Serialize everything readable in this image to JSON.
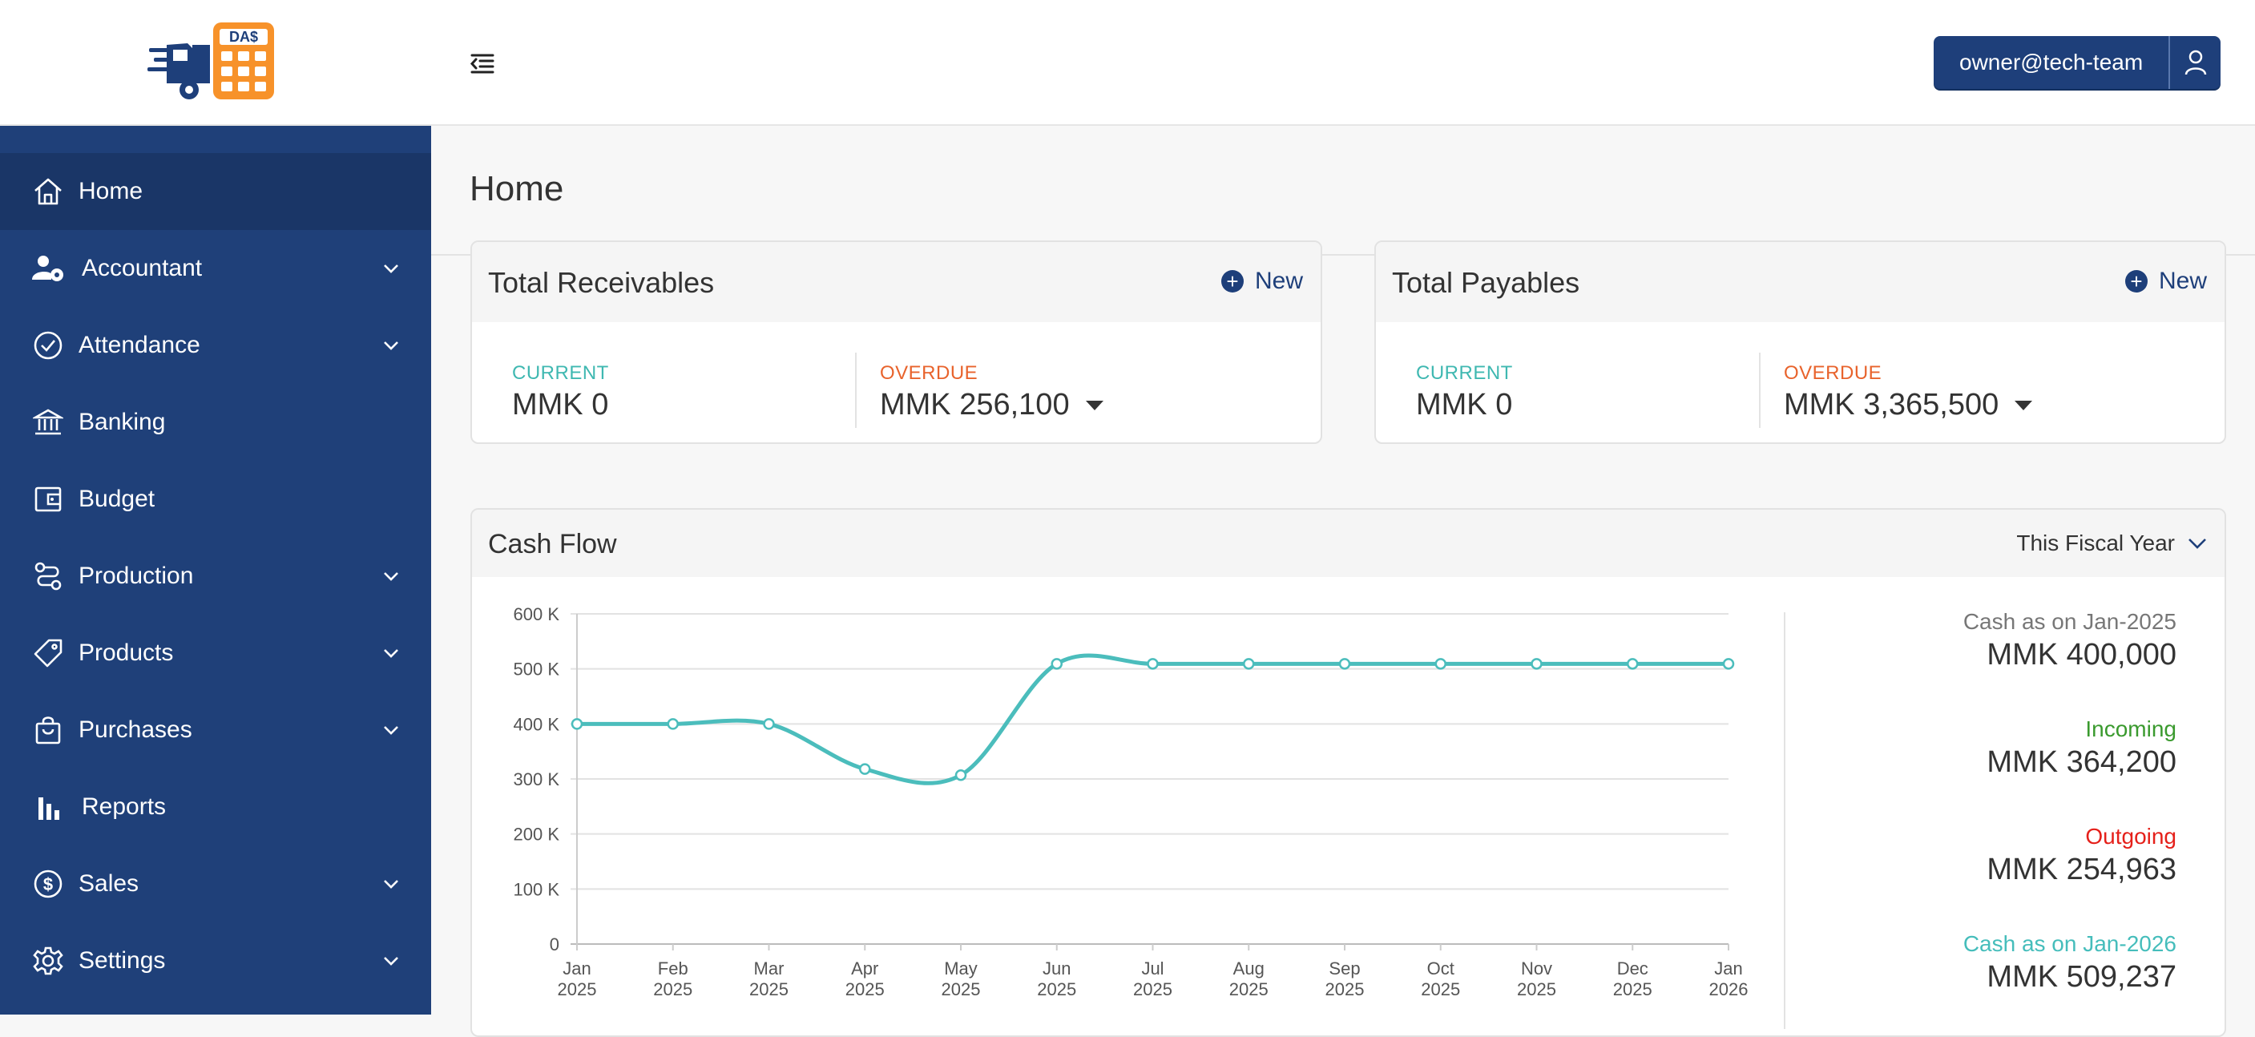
{
  "header": {
    "logo_text": "DA$",
    "user_email": "owner@tech-team"
  },
  "sidebar": {
    "items": [
      {
        "label": "Home",
        "icon": "home-icon",
        "expandable": false,
        "active": true
      },
      {
        "label": "Accountant",
        "icon": "user-cog-icon",
        "expandable": true
      },
      {
        "label": "Attendance",
        "icon": "check-circle-icon",
        "expandable": true
      },
      {
        "label": "Banking",
        "icon": "bank-icon",
        "expandable": false
      },
      {
        "label": "Budget",
        "icon": "wallet-icon",
        "expandable": false
      },
      {
        "label": "Production",
        "icon": "route-icon",
        "expandable": true
      },
      {
        "label": "Products",
        "icon": "tag-icon",
        "expandable": true
      },
      {
        "label": "Purchases",
        "icon": "shopping-bag-icon",
        "expandable": true
      },
      {
        "label": "Reports",
        "icon": "bar-chart-icon",
        "expandable": false
      },
      {
        "label": "Sales",
        "icon": "dollar-circle-icon",
        "expandable": true
      },
      {
        "label": "Settings",
        "icon": "gear-icon",
        "expandable": true
      }
    ]
  },
  "page": {
    "title": "Home"
  },
  "receivables": {
    "title": "Total Receivables",
    "new_label": "New",
    "current_label": "CURRENT",
    "current_value": "MMK 0",
    "overdue_label": "OVERDUE",
    "overdue_value": "MMK 256,100"
  },
  "payables": {
    "title": "Total Payables",
    "new_label": "New",
    "current_label": "CURRENT",
    "current_value": "MMK 0",
    "overdue_label": "OVERDUE",
    "overdue_value": "MMK 3,365,500"
  },
  "cashflow": {
    "title": "Cash Flow",
    "period": "This Fiscal Year",
    "summary": [
      {
        "label": "Cash as on Jan-2025",
        "value": "MMK 400,000",
        "color": "#777777"
      },
      {
        "label": "Incoming",
        "value": "MMK 364,200",
        "color": "#3a9a2e"
      },
      {
        "label": "Outgoing",
        "value": "MMK 254,963",
        "color": "#e5201a"
      },
      {
        "label": "Cash as on Jan-2026",
        "value": "MMK 509,237",
        "color": "#45bdbb"
      }
    ]
  },
  "colors": {
    "sidebar": "#1f4079",
    "accent": "#1e3f7a",
    "current_label": "#3fb8b1",
    "overdue_label": "#e8632c",
    "line": "#4bbdbc"
  },
  "chart_data": {
    "type": "line",
    "categories": [
      "Jan 2025",
      "Feb 2025",
      "Mar 2025",
      "Apr 2025",
      "May 2025",
      "Jun 2025",
      "Jul 2025",
      "Aug 2025",
      "Sep 2025",
      "Oct 2025",
      "Nov 2025",
      "Dec 2025",
      "Jan 2026"
    ],
    "x_tick_top": [
      "Jan",
      "Feb",
      "Mar",
      "Apr",
      "May",
      "Jun",
      "Jul",
      "Aug",
      "Sep",
      "Oct",
      "Nov",
      "Dec",
      "Jan"
    ],
    "x_tick_bottom": [
      "2025",
      "2025",
      "2025",
      "2025",
      "2025",
      "2025",
      "2025",
      "2025",
      "2025",
      "2025",
      "2025",
      "2025",
      "2026"
    ],
    "series": [
      {
        "values": [
          400000,
          400000,
          400000,
          318000,
          307000,
          509237,
          509237,
          509237,
          509237,
          509237,
          509237,
          509237,
          509237
        ]
      }
    ],
    "y_ticks": [
      "0",
      "100 K",
      "200 K",
      "300 K",
      "400 K",
      "500 K",
      "600 K"
    ],
    "ylim": [
      0,
      600000
    ],
    "grid": true,
    "legend": "none",
    "title": "",
    "xlabel": "",
    "ylabel": ""
  }
}
